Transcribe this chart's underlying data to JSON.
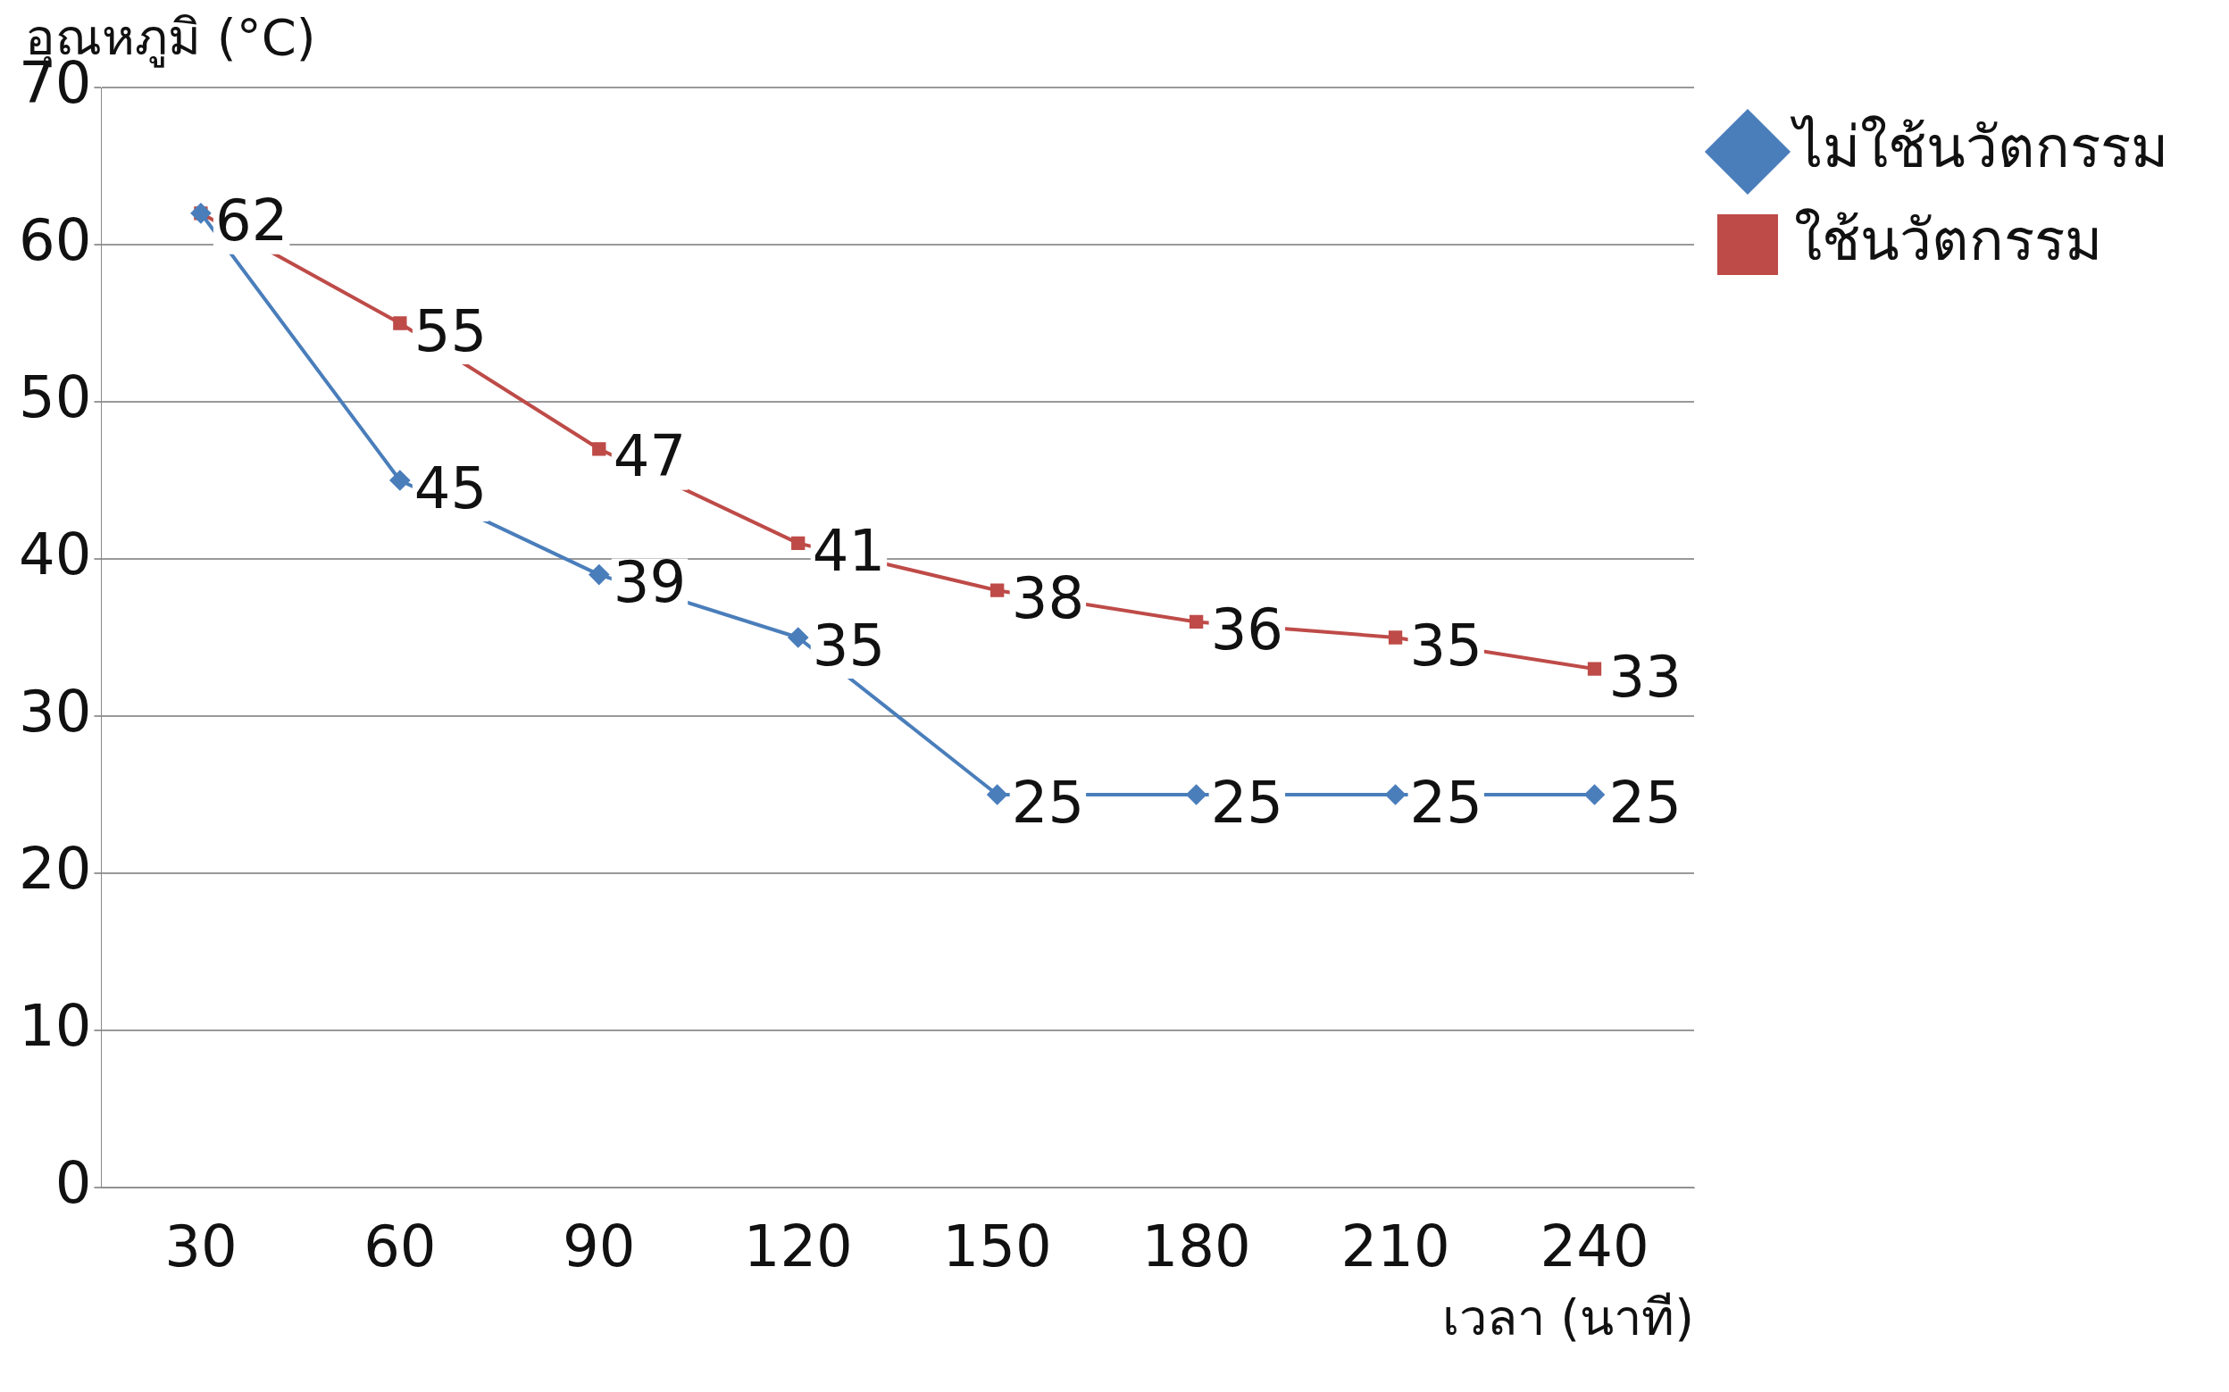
{
  "chart_data": {
    "type": "line",
    "ylabel": "อุณหภูมิ (°C)",
    "xlabel": "เวลา (นาที)",
    "categories": [
      "30",
      "60",
      "90",
      "120",
      "150",
      "180",
      "210",
      "240"
    ],
    "series": [
      {
        "name": "ไม่ใช้นวัตกรรม",
        "color": "#4a7ebb",
        "marker": "diamond",
        "values": [
          62,
          45,
          39,
          35,
          25,
          25,
          25,
          25
        ],
        "value_labels": [
          null,
          "45",
          "39",
          "35",
          "25",
          "25",
          "25",
          "25"
        ]
      },
      {
        "name": "ใช้นวัตกรรม",
        "color": "#be4b48",
        "marker": "square",
        "values": [
          62,
          55,
          47,
          41,
          38,
          36,
          35,
          33
        ],
        "value_labels": [
          "62",
          "55",
          "47",
          "41",
          "38",
          "36",
          "35",
          "33"
        ]
      }
    ],
    "ylim": [
      0,
      70
    ],
    "yticks": [
      0,
      10,
      20,
      30,
      40,
      50,
      60,
      70
    ],
    "grid": "y",
    "legend": "right",
    "line_style": "solid"
  }
}
